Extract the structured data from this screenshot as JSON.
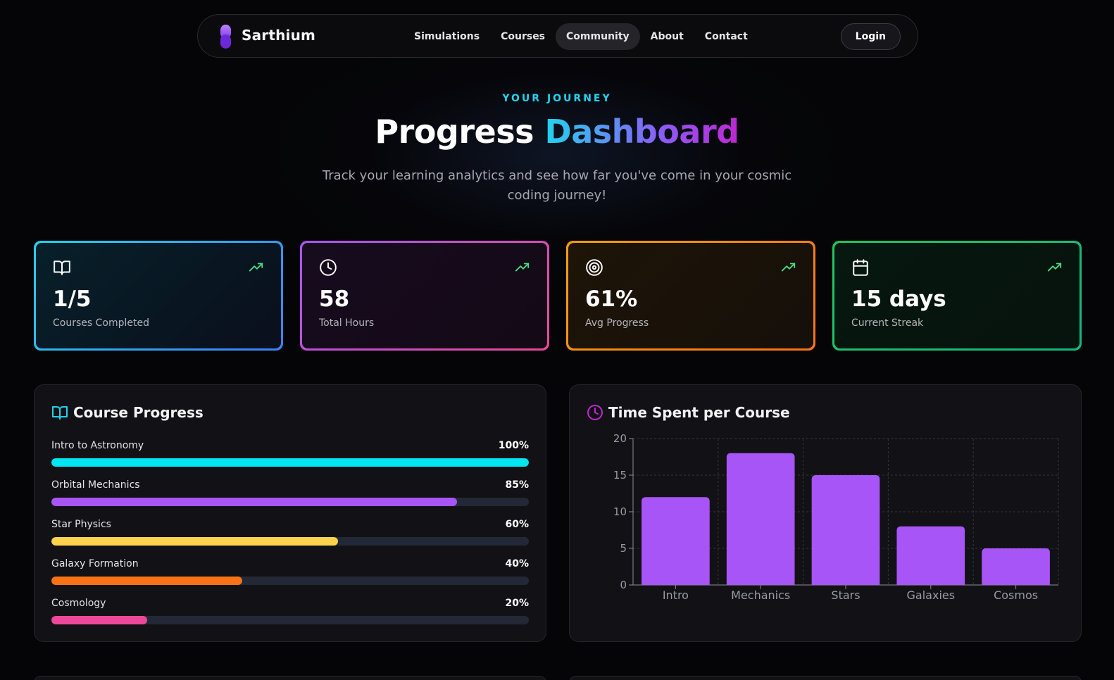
{
  "nav": {
    "brand": "Sarthium",
    "links": [
      "Simulations",
      "Courses",
      "Community",
      "About",
      "Contact"
    ],
    "active_link": "Community",
    "login_label": "Login"
  },
  "hero": {
    "eyebrow": "YOUR JOURNEY",
    "title_plain": "Progress",
    "title_accent": "Dashboard",
    "subtitle": "Track your learning analytics and see how far you've come in your cosmic coding journey!"
  },
  "stats": [
    {
      "value": "1/5",
      "label": "Courses Completed",
      "icon": "book-open-icon",
      "color": "#22d3ee"
    },
    {
      "value": "58",
      "label": "Total Hours",
      "icon": "clock-icon",
      "color": "#c026d3"
    },
    {
      "value": "61%",
      "label": "Avg Progress",
      "icon": "target-icon",
      "color": "#f59e0b"
    },
    {
      "value": "15 days",
      "label": "Current Streak",
      "icon": "calendar-icon",
      "color": "#22c55e"
    }
  ],
  "course_progress": {
    "title": "Course Progress",
    "items": [
      {
        "name": "Intro to Astronomy",
        "percent": 100,
        "percent_label": "100%",
        "color": "#00e5f0"
      },
      {
        "name": "Orbital Mechanics",
        "percent": 85,
        "percent_label": "85%",
        "color": "#a855f7"
      },
      {
        "name": "Star Physics",
        "percent": 60,
        "percent_label": "60%",
        "color": "#fcd34d"
      },
      {
        "name": "Galaxy Formation",
        "percent": 40,
        "percent_label": "40%",
        "color": "#f97316"
      },
      {
        "name": "Cosmology",
        "percent": 20,
        "percent_label": "20%",
        "color": "#ec4899"
      }
    ]
  },
  "time_panel": {
    "title": "Time Spent per Course"
  },
  "chart_data": {
    "type": "bar",
    "categories": [
      "Intro",
      "Mechanics",
      "Stars",
      "Galaxies",
      "Cosmos"
    ],
    "values": [
      12,
      18,
      15,
      8,
      5
    ],
    "title": "",
    "xlabel": "",
    "ylabel": "",
    "ylim": [
      0,
      20
    ],
    "yticks": [
      0,
      5,
      10,
      15,
      20
    ],
    "grid": true,
    "bar_color": "#a855f7"
  }
}
